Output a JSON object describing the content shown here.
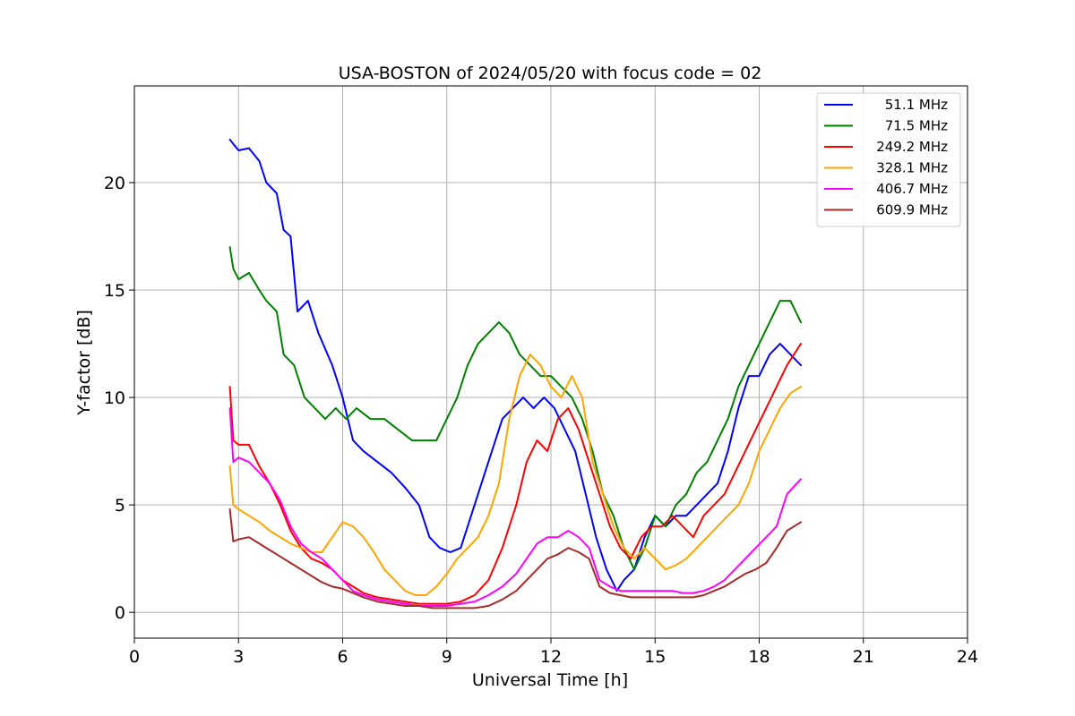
{
  "chart_data": {
    "type": "line",
    "title": "USA-BOSTON of 2024/05/20 with focus code = 02",
    "xlabel": "Universal Time [h]",
    "ylabel": "Y-factor [dB]",
    "xlim": [
      0,
      24
    ],
    "ylim": [
      -1.2,
      24.5
    ],
    "xticks": [
      0,
      3,
      6,
      9,
      12,
      15,
      18,
      21,
      24
    ],
    "yticks": [
      0,
      5,
      10,
      15,
      20
    ],
    "grid": true,
    "legend_position": "top-right",
    "series": [
      {
        "name": "51.1 MHz",
        "color": "#0000ff",
        "x": [
          2.75,
          2.85,
          3.0,
          3.3,
          3.6,
          3.8,
          4.1,
          4.3,
          4.5,
          4.7,
          5.0,
          5.3,
          5.7,
          6.0,
          6.3,
          6.6,
          7.0,
          7.4,
          7.8,
          8.2,
          8.5,
          8.8,
          9.1,
          9.4,
          9.7,
          10.0,
          10.3,
          10.6,
          10.9,
          11.2,
          11.5,
          11.8,
          12.1,
          12.4,
          12.7,
          13.0,
          13.3,
          13.6,
          13.9,
          14.1,
          14.4,
          14.7,
          15.0,
          15.3,
          15.6,
          15.9,
          16.2,
          16.5,
          16.8,
          17.1,
          17.4,
          17.7,
          18.0,
          18.3,
          18.6,
          18.9,
          19.2
        ],
        "values": [
          22.0,
          21.8,
          21.5,
          21.6,
          21.0,
          20.0,
          19.5,
          17.8,
          17.5,
          14.0,
          14.5,
          13.0,
          11.5,
          10.0,
          8.0,
          7.5,
          7.0,
          6.5,
          5.8,
          5.0,
          3.5,
          3.0,
          2.8,
          3.0,
          4.5,
          6.0,
          7.5,
          9.0,
          9.5,
          10.0,
          9.5,
          10.0,
          9.5,
          8.5,
          7.5,
          5.5,
          3.5,
          2.0,
          1.0,
          1.5,
          2.0,
          3.5,
          4.5,
          4.0,
          4.5,
          4.5,
          5.0,
          5.5,
          6.0,
          7.5,
          9.5,
          11.0,
          11.0,
          12.0,
          12.5,
          12.0,
          11.5
        ]
      },
      {
        "name": "71.5 MHz",
        "color": "#008000",
        "x": [
          2.75,
          2.85,
          3.0,
          3.3,
          3.6,
          3.8,
          4.1,
          4.3,
          4.6,
          4.9,
          5.2,
          5.5,
          5.8,
          6.1,
          6.4,
          6.8,
          7.2,
          7.6,
          8.0,
          8.4,
          8.7,
          9.0,
          9.3,
          9.6,
          9.9,
          10.2,
          10.5,
          10.8,
          11.1,
          11.4,
          11.7,
          12.0,
          12.3,
          12.6,
          12.9,
          13.2,
          13.5,
          13.8,
          14.1,
          14.4,
          14.7,
          15.0,
          15.3,
          15.6,
          15.9,
          16.2,
          16.5,
          16.8,
          17.1,
          17.4,
          17.7,
          18.0,
          18.3,
          18.6,
          18.9,
          19.2
        ],
        "values": [
          17.0,
          16.0,
          15.5,
          15.8,
          15.0,
          14.5,
          14.0,
          12.0,
          11.5,
          10.0,
          9.5,
          9.0,
          9.5,
          9.0,
          9.5,
          9.0,
          9.0,
          8.5,
          8.0,
          8.0,
          8.0,
          9.0,
          10.0,
          11.5,
          12.5,
          13.0,
          13.5,
          13.0,
          12.0,
          11.5,
          11.0,
          11.0,
          10.5,
          10.0,
          9.0,
          7.5,
          5.5,
          4.5,
          3.0,
          2.0,
          3.0,
          4.5,
          4.0,
          5.0,
          5.5,
          6.5,
          7.0,
          8.0,
          9.0,
          10.5,
          11.5,
          12.5,
          13.5,
          14.5,
          14.5,
          13.5
        ]
      },
      {
        "name": "249.2 MHz",
        "color": "#ff0000",
        "x": [
          2.75,
          2.85,
          3.0,
          3.3,
          3.6,
          3.9,
          4.2,
          4.5,
          4.8,
          5.1,
          5.4,
          5.7,
          6.0,
          6.3,
          6.6,
          7.0,
          7.4,
          7.8,
          8.2,
          8.6,
          9.0,
          9.4,
          9.8,
          10.2,
          10.6,
          11.0,
          11.3,
          11.6,
          11.9,
          12.2,
          12.5,
          12.8,
          13.1,
          13.4,
          13.7,
          14.0,
          14.3,
          14.6,
          14.9,
          15.2,
          15.5,
          15.8,
          16.1,
          16.4,
          16.7,
          17.0,
          17.3,
          17.6,
          17.9,
          18.2,
          18.5,
          18.8,
          19.2
        ],
        "values": [
          10.5,
          8.0,
          7.8,
          7.8,
          6.8,
          6.0,
          5.0,
          3.8,
          3.0,
          2.5,
          2.3,
          2.0,
          1.5,
          1.2,
          0.9,
          0.7,
          0.6,
          0.5,
          0.4,
          0.4,
          0.4,
          0.5,
          0.8,
          1.5,
          3.0,
          5.0,
          7.0,
          8.0,
          7.5,
          9.0,
          9.5,
          8.5,
          7.0,
          5.5,
          4.0,
          3.0,
          2.5,
          3.5,
          4.0,
          4.0,
          4.5,
          4.0,
          3.5,
          4.5,
          5.0,
          5.5,
          6.5,
          7.5,
          8.5,
          9.5,
          10.5,
          11.5,
          12.5
        ]
      },
      {
        "name": "328.1 MHz",
        "color": "#ffa500",
        "x": [
          2.75,
          2.85,
          3.0,
          3.3,
          3.6,
          3.9,
          4.2,
          4.5,
          4.8,
          5.1,
          5.4,
          5.7,
          6.0,
          6.3,
          6.6,
          6.9,
          7.2,
          7.5,
          7.8,
          8.1,
          8.4,
          8.7,
          9.0,
          9.3,
          9.6,
          9.9,
          10.2,
          10.5,
          10.8,
          11.1,
          11.4,
          11.7,
          12.0,
          12.3,
          12.6,
          12.9,
          13.2,
          13.5,
          13.8,
          14.1,
          14.4,
          14.7,
          15.0,
          15.3,
          15.6,
          15.9,
          16.2,
          16.5,
          16.8,
          17.1,
          17.4,
          17.7,
          18.0,
          18.3,
          18.6,
          18.9,
          19.2
        ],
        "values": [
          6.8,
          5.0,
          4.8,
          4.5,
          4.2,
          3.8,
          3.5,
          3.2,
          3.0,
          2.8,
          2.8,
          3.5,
          4.2,
          4.0,
          3.5,
          2.8,
          2.0,
          1.5,
          1.0,
          0.8,
          0.8,
          1.2,
          1.8,
          2.5,
          3.0,
          3.5,
          4.5,
          6.0,
          9.0,
          11.0,
          12.0,
          11.5,
          10.5,
          10.0,
          11.0,
          10.0,
          7.0,
          5.5,
          4.0,
          3.0,
          2.5,
          3.0,
          2.5,
          2.0,
          2.2,
          2.5,
          3.0,
          3.5,
          4.0,
          4.5,
          5.0,
          6.0,
          7.5,
          8.5,
          9.5,
          10.2,
          10.5
        ]
      },
      {
        "name": "406.7 MHz",
        "color": "#ff00ff",
        "x": [
          2.75,
          2.85,
          3.0,
          3.3,
          3.6,
          3.9,
          4.2,
          4.5,
          4.8,
          5.1,
          5.4,
          5.7,
          6.0,
          6.3,
          6.6,
          7.0,
          7.4,
          7.8,
          8.2,
          8.6,
          9.0,
          9.4,
          9.8,
          10.2,
          10.6,
          11.0,
          11.3,
          11.6,
          11.9,
          12.2,
          12.5,
          12.8,
          13.1,
          13.4,
          13.7,
          14.0,
          14.3,
          14.6,
          14.9,
          15.2,
          15.5,
          15.8,
          16.1,
          16.4,
          16.7,
          17.0,
          17.3,
          17.6,
          17.9,
          18.2,
          18.5,
          18.8,
          19.2
        ],
        "values": [
          9.5,
          7.0,
          7.2,
          7.0,
          6.5,
          6.0,
          5.2,
          4.0,
          3.2,
          2.8,
          2.5,
          2.0,
          1.5,
          1.0,
          0.8,
          0.6,
          0.5,
          0.4,
          0.3,
          0.3,
          0.3,
          0.4,
          0.5,
          0.8,
          1.2,
          1.8,
          2.5,
          3.2,
          3.5,
          3.5,
          3.8,
          3.5,
          3.0,
          1.5,
          1.2,
          1.0,
          1.0,
          1.0,
          1.0,
          1.0,
          1.0,
          0.9,
          0.9,
          1.0,
          1.2,
          1.5,
          2.0,
          2.5,
          3.0,
          3.5,
          4.0,
          5.5,
          6.2
        ]
      },
      {
        "name": "609.9 MHz",
        "color": "#a52a2a",
        "x": [
          2.75,
          2.85,
          3.0,
          3.3,
          3.6,
          3.9,
          4.2,
          4.5,
          4.8,
          5.1,
          5.4,
          5.7,
          6.0,
          6.3,
          6.6,
          7.0,
          7.4,
          7.8,
          8.2,
          8.6,
          9.0,
          9.4,
          9.8,
          10.2,
          10.6,
          11.0,
          11.3,
          11.6,
          11.9,
          12.2,
          12.5,
          12.8,
          13.1,
          13.4,
          13.7,
          14.0,
          14.3,
          14.6,
          14.9,
          15.2,
          15.5,
          15.8,
          16.1,
          16.4,
          16.7,
          17.0,
          17.3,
          17.6,
          17.9,
          18.2,
          18.5,
          18.8,
          19.2
        ],
        "values": [
          4.8,
          3.3,
          3.4,
          3.5,
          3.2,
          2.9,
          2.6,
          2.3,
          2.0,
          1.7,
          1.4,
          1.2,
          1.1,
          0.9,
          0.7,
          0.5,
          0.4,
          0.3,
          0.3,
          0.2,
          0.2,
          0.2,
          0.2,
          0.3,
          0.6,
          1.0,
          1.5,
          2.0,
          2.5,
          2.7,
          3.0,
          2.8,
          2.5,
          1.2,
          0.9,
          0.8,
          0.7,
          0.7,
          0.7,
          0.7,
          0.7,
          0.7,
          0.7,
          0.8,
          1.0,
          1.2,
          1.5,
          1.8,
          2.0,
          2.3,
          3.0,
          3.8,
          4.2
        ]
      }
    ]
  }
}
